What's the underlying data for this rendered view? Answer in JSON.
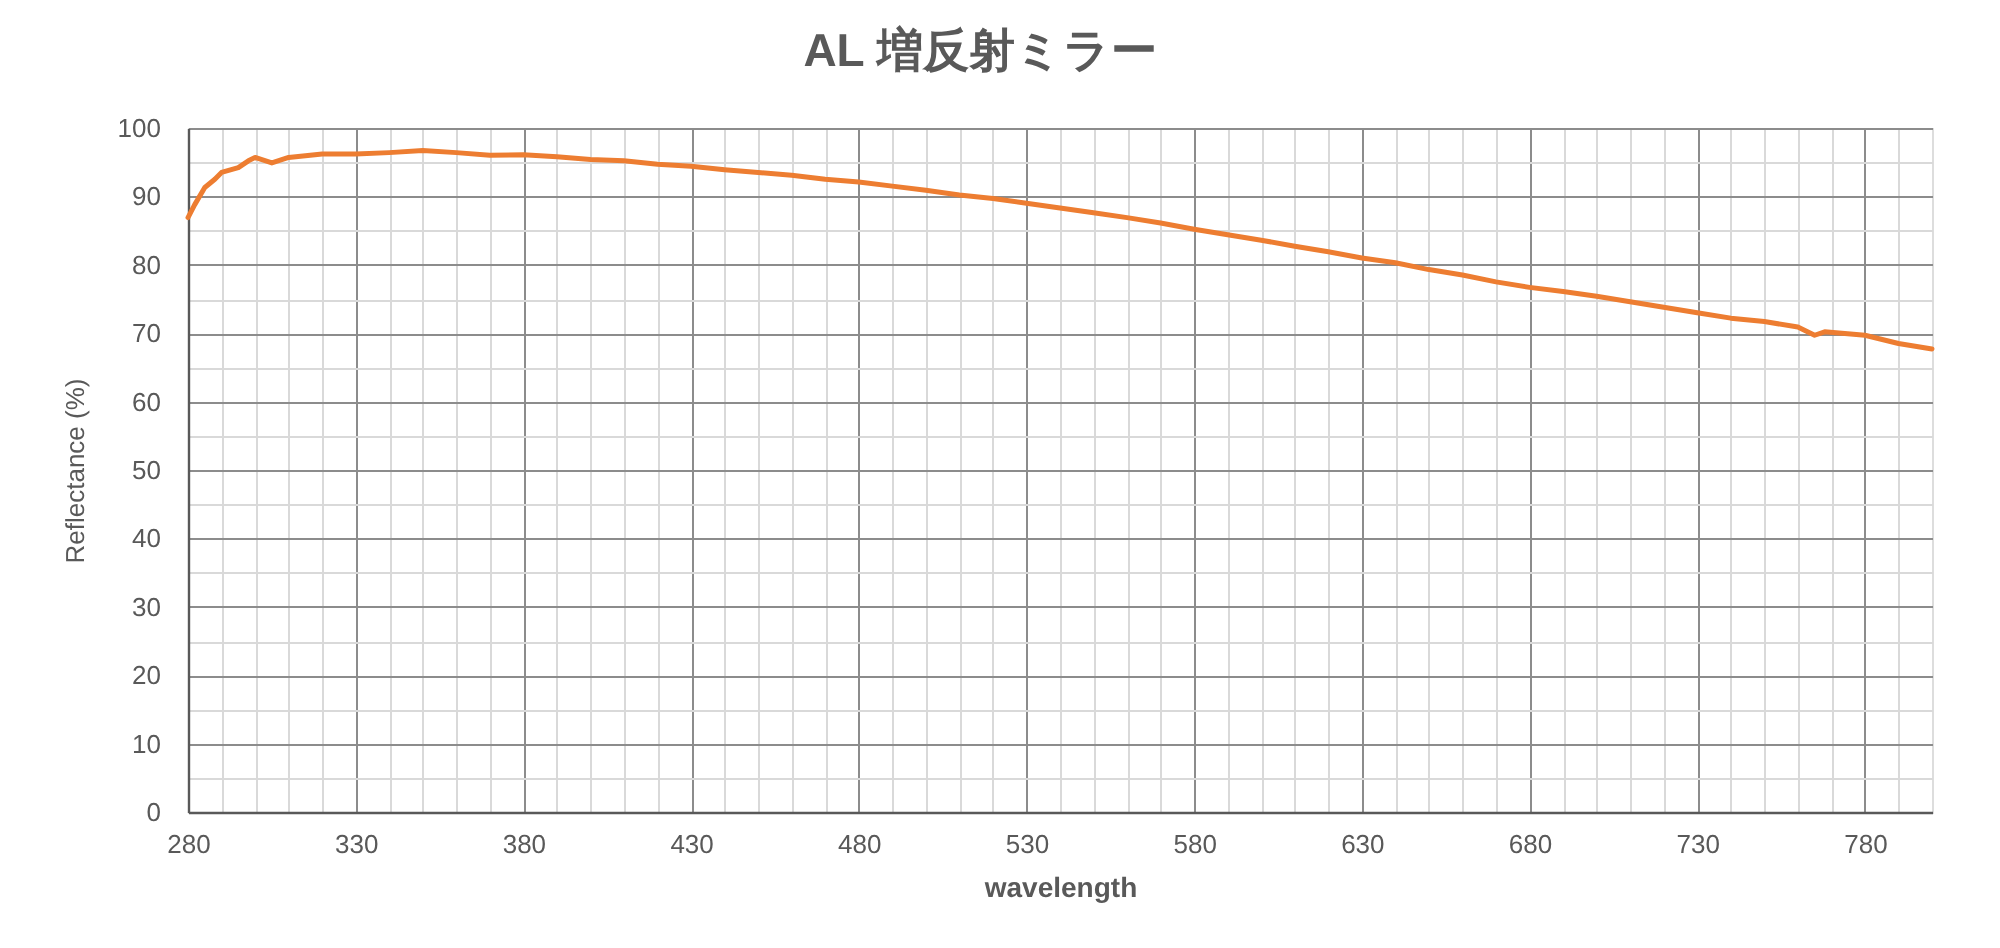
{
  "chart_data": {
    "type": "line",
    "title": "AL 増反射ミラー",
    "xlabel": "wavelength",
    "ylabel": "Reflectance (%)",
    "x": [
      280,
      282,
      285,
      288,
      290,
      295,
      298,
      300,
      305,
      310,
      320,
      330,
      340,
      350,
      360,
      370,
      380,
      390,
      400,
      410,
      420,
      430,
      440,
      450,
      460,
      470,
      480,
      490,
      500,
      510,
      520,
      530,
      540,
      550,
      560,
      570,
      580,
      590,
      600,
      610,
      620,
      630,
      640,
      650,
      660,
      670,
      680,
      690,
      700,
      710,
      720,
      730,
      740,
      750,
      760,
      765,
      768,
      780,
      790,
      800
    ],
    "series": [
      {
        "color": "#ed7d31",
        "values": [
          86.9,
          88.8,
          91.3,
          92.5,
          93.5,
          94.2,
          95.2,
          95.7,
          94.9,
          95.7,
          96.2,
          96.2,
          96.4,
          96.7,
          96.4,
          96.0,
          96.1,
          95.8,
          95.4,
          95.2,
          94.7,
          94.4,
          93.9,
          93.5,
          93.1,
          92.5,
          92.1,
          91.5,
          90.9,
          90.2,
          89.7,
          89.0,
          88.3,
          87.6,
          86.9,
          86.1,
          85.2,
          84.4,
          83.6,
          82.7,
          81.9,
          81.0,
          80.3,
          79.3,
          78.5,
          77.5,
          76.7,
          76.1,
          75.4,
          74.6,
          73.8,
          73.0,
          72.2,
          71.7,
          70.9,
          69.7,
          70.2,
          69.7,
          68.5,
          67.7
        ]
      }
    ],
    "xlim": [
      280,
      800
    ],
    "xticks": [
      280,
      {
        "value": 290,
        "label": null
      },
      {
        "value": 300,
        "label": null
      },
      {
        "value": 310,
        "label": null
      },
      {
        "value": 320,
        "label": null
      },
      330,
      {
        "value": 340,
        "label": null
      },
      {
        "value": 350,
        "label": null
      },
      {
        "value": 360,
        "label": null
      },
      {
        "value": 370,
        "label": null
      },
      380,
      {
        "value": 390,
        "label": null
      },
      {
        "value": 400,
        "label": null
      },
      {
        "value": 410,
        "label": null
      },
      {
        "value": 420,
        "label": null
      },
      430,
      {
        "value": 440,
        "label": null
      },
      {
        "value": 450,
        "label": null
      },
      {
        "value": 460,
        "label": null
      },
      {
        "value": 470,
        "label": null
      },
      480,
      {
        "value": 490,
        "label": null
      },
      {
        "value": 500,
        "label": null
      },
      {
        "value": 510,
        "label": null
      },
      {
        "value": 520,
        "label": null
      },
      530,
      {
        "value": 540,
        "label": null
      },
      {
        "value": 550,
        "label": null
      },
      {
        "value": 560,
        "label": null
      },
      {
        "value": 570,
        "label": null
      },
      580,
      {
        "value": 590,
        "label": null
      },
      {
        "value": 600,
        "label": null
      },
      {
        "value": 610,
        "label": null
      },
      {
        "value": 620,
        "label": null
      },
      630,
      {
        "value": 640,
        "label": null
      },
      {
        "value": 650,
        "label": null
      },
      {
        "value": 660,
        "label": null
      },
      {
        "value": 670,
        "label": null
      },
      680,
      {
        "value": 690,
        "label": null
      },
      {
        "value": 700,
        "label": null
      },
      {
        "value": 710,
        "label": null
      },
      {
        "value": 720,
        "label": null
      },
      730,
      {
        "value": 740,
        "label": null
      },
      {
        "value": 750,
        "label": null
      },
      {
        "value": 760,
        "label": null
      },
      {
        "value": 770,
        "label": null
      },
      780,
      {
        "value": 790,
        "label": null
      }
    ],
    "ylim": [
      0,
      100
    ],
    "yticks": [
      0,
      {
        "value": 5,
        "label": null
      },
      10,
      {
        "value": 15,
        "label": null
      },
      20,
      {
        "value": 25,
        "label": null
      },
      30,
      {
        "value": 35,
        "label": null
      },
      40,
      {
        "value": 45,
        "label": null
      },
      50,
      {
        "value": 55,
        "label": null
      },
      60,
      {
        "value": 65,
        "label": null
      },
      70,
      {
        "value": 75,
        "label": null
      },
      80,
      {
        "value": 85,
        "label": null
      },
      90,
      {
        "value": 95,
        "label": null
      },
      100
    ],
    "grid": true
  }
}
